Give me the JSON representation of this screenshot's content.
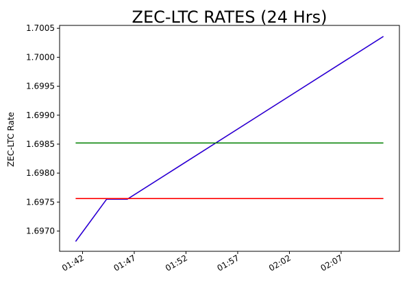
{
  "chart_data": {
    "type": "line",
    "title": "ZEC-LTC RATES (24 Hrs)",
    "xlabel": "",
    "ylabel": "ZEC-LTC Rate",
    "x_ticks": [
      "01:42",
      "01:47",
      "01:52",
      "01:57",
      "02:02",
      "02:07"
    ],
    "y_ticks": [
      "1.6970",
      "1.6975",
      "1.6980",
      "1.6985",
      "1.6990",
      "1.6995",
      "1.7000",
      "1.7005"
    ],
    "ylim": [
      1.69665,
      1.70055
    ],
    "xlim": [
      "01:39:47",
      "02:12:38"
    ],
    "grid": false,
    "legend": "none",
    "series": [
      {
        "color": "#800080",
        "points": [
          {
            "x": "01:41:20",
            "y": 1.69682
          },
          {
            "x": "01:44:20",
            "y": 1.69755
          },
          {
            "x": "01:46:20",
            "y": 1.69755
          },
          {
            "x": "02:11:05",
            "y": 1.70036
          }
        ]
      },
      {
        "color": "#0000ff",
        "points": [
          {
            "x": "01:41:20",
            "y": 1.69682
          },
          {
            "x": "01:44:20",
            "y": 1.69755
          },
          {
            "x": "01:46:20",
            "y": 1.69755
          },
          {
            "x": "02:11:05",
            "y": 1.70036
          }
        ]
      },
      {
        "color": "#008000",
        "points": [
          {
            "x": "01:41:20",
            "y": 1.69852
          },
          {
            "x": "02:11:05",
            "y": 1.69852
          }
        ]
      },
      {
        "color": "#ff0000",
        "points": [
          {
            "x": "01:41:20",
            "y": 1.69756
          },
          {
            "x": "02:11:05",
            "y": 1.69756
          }
        ]
      }
    ]
  }
}
